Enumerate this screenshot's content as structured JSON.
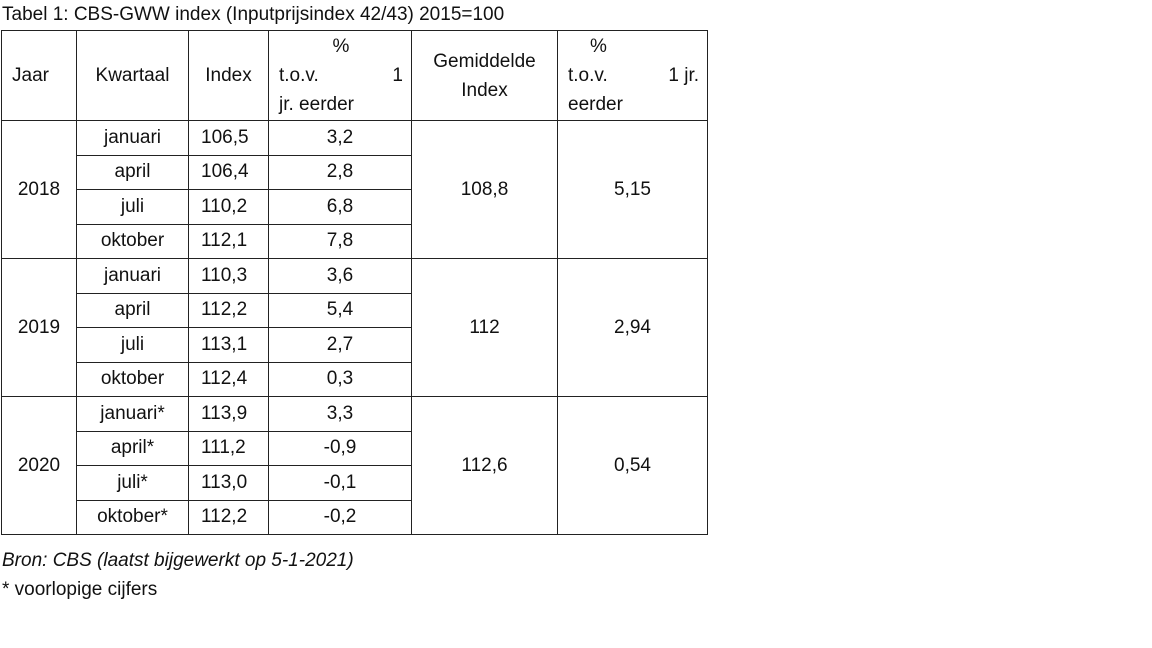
{
  "caption": "Tabel 1: CBS-GWW index (Inputprijsindex 42/43) 2015=100",
  "headers": {
    "jaar": "Jaar",
    "kwartaal": "Kwartaal",
    "index": "Index",
    "pct_sign": "%",
    "pct_tov": "t.o.v.",
    "pct_1": "1",
    "pct_jr_eerder": "jr. eerder",
    "gem_line1": "Gemiddelde",
    "gem_line2": "Index",
    "pct2_sign": "%",
    "pct2_tov": "t.o.v.",
    "pct2_1jr": "1 jr.",
    "pct2_eerder": "eerder"
  },
  "years": [
    {
      "year": "2018",
      "avg_index": "108,8",
      "avg_pct": "5,15",
      "rows": [
        {
          "kwartaal": "januari",
          "index": "106,5",
          "pct": "3,2"
        },
        {
          "kwartaal": "april",
          "index": "106,4",
          "pct": "2,8"
        },
        {
          "kwartaal": "juli",
          "index": "110,2",
          "pct": "6,8"
        },
        {
          "kwartaal": "oktober",
          "index": "112,1",
          "pct": "7,8"
        }
      ]
    },
    {
      "year": "2019",
      "avg_index": "112",
      "avg_pct": "2,94",
      "rows": [
        {
          "kwartaal": "januari",
          "index": "110,3",
          "pct": "3,6"
        },
        {
          "kwartaal": "april",
          "index": "112,2",
          "pct": "5,4"
        },
        {
          "kwartaal": "juli",
          "index": "113,1",
          "pct": "2,7"
        },
        {
          "kwartaal": "oktober",
          "index": "112,4",
          "pct": "0,3"
        }
      ]
    },
    {
      "year": "2020",
      "avg_index": "112,6",
      "avg_pct": "0,54",
      "rows": [
        {
          "kwartaal": "januari*",
          "index": "113,9",
          "pct": "3,3"
        },
        {
          "kwartaal": "april*",
          "index": "111,2",
          "pct": "-0,9"
        },
        {
          "kwartaal": "juli*",
          "index": "113,0",
          "pct": "-0,1"
        },
        {
          "kwartaal": "oktober*",
          "index": "112,2",
          "pct": "-0,2"
        }
      ]
    }
  ],
  "source": "Bron: CBS (laatst bijgewerkt op 5-1-2021)",
  "footnote": "* voorlopige cijfers"
}
